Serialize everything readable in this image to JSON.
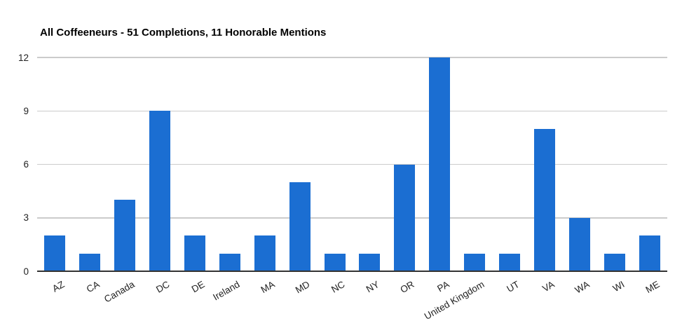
{
  "chart_data": {
    "type": "bar",
    "title": "All Coffeeneurs - 51 Completions, 11 Honorable Mentions",
    "categories": [
      "AZ",
      "CA",
      "Canada",
      "DC",
      "DE",
      "Ireland",
      "MA",
      "MD",
      "NC",
      "NY",
      "OR",
      "PA",
      "United Kingdom",
      "UT",
      "VA",
      "WA",
      "WI",
      "ME"
    ],
    "values": [
      2,
      1,
      4,
      9,
      2,
      1,
      2,
      5,
      1,
      1,
      6,
      12,
      1,
      1,
      8,
      3,
      1,
      2
    ],
    "xlabel": "",
    "ylabel": "",
    "ylim": [
      0,
      12
    ],
    "yticks": [
      0,
      3,
      6,
      9,
      12
    ],
    "grid": true,
    "legend": "none",
    "x_label_rotation_deg": -30,
    "colors": {
      "bar": "#1b6ed2",
      "gridline": "#cbcbcb",
      "baseline": "#333333",
      "axis_label": "#222222",
      "title": "#000000",
      "background": "#ffffff"
    }
  }
}
